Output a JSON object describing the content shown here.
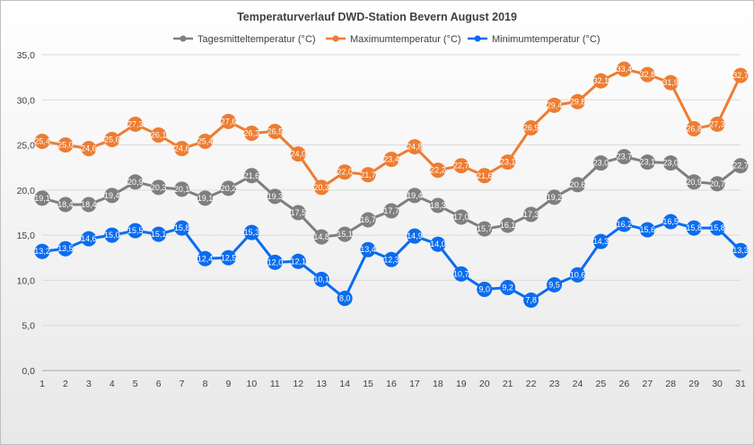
{
  "chart_data": {
    "type": "line",
    "title": "Temperaturverlauf DWD-Station Bevern August 2019",
    "categories": [
      "1",
      "2",
      "3",
      "4",
      "5",
      "6",
      "7",
      "8",
      "9",
      "10",
      "11",
      "12",
      "13",
      "14",
      "15",
      "16",
      "17",
      "18",
      "19",
      "20",
      "21",
      "22",
      "23",
      "24",
      "25",
      "26",
      "27",
      "28",
      "29",
      "30",
      "31"
    ],
    "ylim": [
      0,
      35
    ],
    "yticks": [
      "0,0",
      "5,0",
      "10,0",
      "15,0",
      "20,0",
      "25,0",
      "30,0",
      "35,0"
    ],
    "grid": true,
    "legend_position": "top",
    "series": [
      {
        "name": "Tagesmitteltemperatur (°C)",
        "color": "#7f7f7f",
        "values": [
          19.1,
          18.4,
          18.4,
          19.4,
          20.9,
          20.3,
          20.1,
          19.1,
          20.2,
          21.6,
          19.3,
          17.5,
          14.8,
          15.1,
          16.7,
          17.7,
          19.4,
          18.3,
          17.0,
          15.7,
          16.1,
          17.3,
          19.2,
          20.6,
          23.0,
          23.7,
          23.1,
          23.0,
          20.9,
          20.7,
          22.7
        ],
        "labels": [
          "19,1",
          "18,4",
          "18,4",
          "19,4",
          "20,9",
          "20,3",
          "20,1",
          "19,1",
          "20,2",
          "21,6",
          "19,3",
          "17,5",
          "14,8",
          "15,1",
          "16,7",
          "17,7",
          "19,4",
          "18,3",
          "17,0",
          "15,7",
          "16,1",
          "17,3",
          "19,2",
          "20,6",
          "23,0",
          "23,7",
          "23,1",
          "23,0",
          "20,9",
          "20,7",
          "22,7"
        ]
      },
      {
        "name": "Maximumtemperatur (°C)",
        "color": "#ed7d31",
        "values": [
          25.4,
          25.0,
          24.6,
          25.6,
          27.3,
          26.1,
          24.6,
          25.4,
          27.6,
          26.3,
          26.5,
          24.0,
          20.3,
          22.0,
          21.7,
          23.4,
          24.8,
          22.2,
          22.7,
          21.6,
          23.1,
          26.9,
          29.4,
          29.8,
          32.1,
          33.4,
          32.8,
          31.9,
          26.8,
          27.3,
          32.7
        ],
        "labels": [
          "25,4",
          "25,0",
          "24,6",
          "25,6",
          "27,3",
          "26,1",
          "24,6",
          "25,4",
          "27,6",
          "26,3",
          "26,5",
          "24,0",
          "20,3",
          "22,0",
          "21,7",
          "23,4",
          "24,8",
          "22,2",
          "22,7",
          "21,6",
          "23,1",
          "26,9",
          "29,4",
          "29,8",
          "32,1",
          "33,4",
          "32,8",
          "31,9",
          "26,8",
          "27,3",
          "32,7"
        ]
      },
      {
        "name": "Minimumtemperatur (°C)",
        "color": "#0a6cf0",
        "values": [
          13.2,
          13.5,
          14.6,
          15.0,
          15.5,
          15.1,
          15.8,
          12.4,
          12.5,
          15.3,
          12.0,
          12.1,
          10.1,
          8.0,
          13.4,
          12.3,
          14.9,
          14.0,
          10.7,
          9.0,
          9.2,
          7.8,
          9.5,
          10.6,
          14.3,
          16.2,
          15.6,
          16.5,
          15.8,
          15.8,
          13.3
        ],
        "labels": [
          "13,2",
          "13,5",
          "14,6",
          "15,0",
          "15,5",
          "15,1",
          "15,8",
          "12,4",
          "12,5",
          "15,3",
          "12,0",
          "12,1",
          "10,1",
          "8,0",
          "13,4",
          "12,3",
          "14,9",
          "14,0",
          "10,7",
          "9,0",
          "9,2",
          "7,8",
          "9,5",
          "10,6",
          "14,3",
          "16,2",
          "15,6",
          "16,5",
          "15,8",
          "15,8",
          "13,3"
        ]
      }
    ]
  }
}
